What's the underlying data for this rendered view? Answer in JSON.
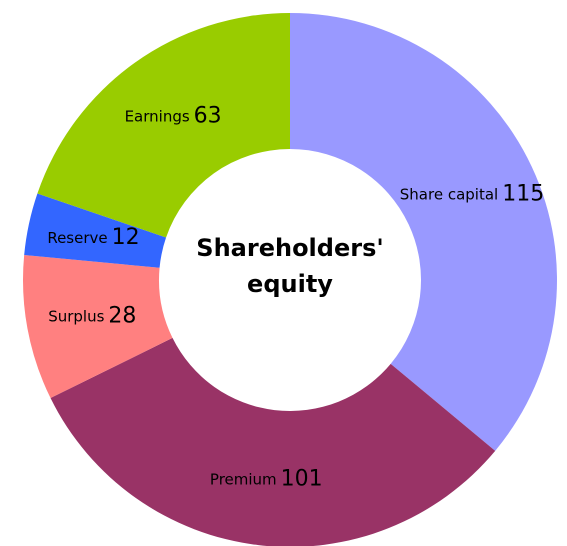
{
  "chart_data": {
    "type": "donut",
    "title": "Shareholders' equity",
    "categories": [
      "Share capital",
      "Premium",
      "Surplus",
      "Reserve",
      "Earnings"
    ],
    "values": [
      115,
      101,
      28,
      12,
      63
    ],
    "colors": [
      "#9999ff",
      "#993366",
      "#ff8080",
      "#3366ff",
      "#99cc00"
    ]
  }
}
